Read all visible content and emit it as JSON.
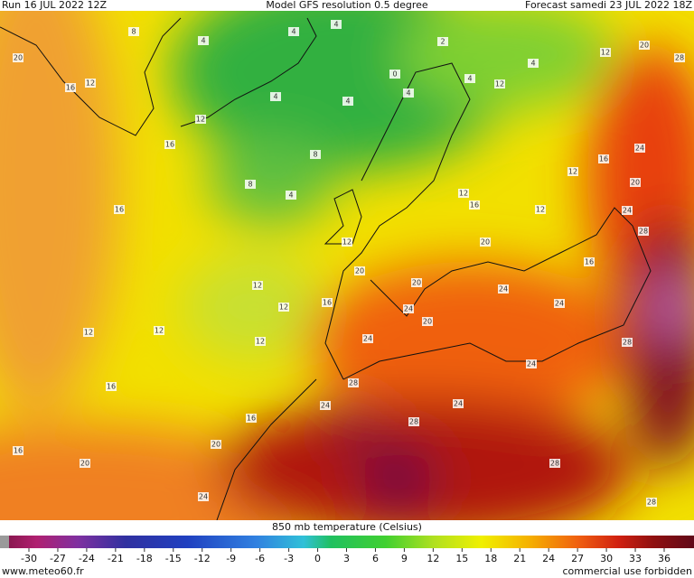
{
  "header": {
    "run": "Run 16 JUL 2022 12Z",
    "model": "Model GFS resolution 0.5 degree",
    "forecast": "Forecast samedi 23 JUL 2022 18Z"
  },
  "contour_labels": [
    20,
    16,
    12,
    8,
    4,
    4,
    4,
    2,
    12,
    16,
    4,
    4,
    0,
    4,
    4,
    4,
    12,
    12,
    20,
    28,
    8,
    8,
    4,
    16,
    12,
    12,
    16,
    24,
    20,
    24,
    28,
    16,
    12,
    12,
    20,
    20,
    20,
    16,
    12,
    16,
    12,
    24,
    24,
    24,
    20,
    12,
    12,
    12,
    24,
    28,
    16,
    28,
    24,
    24,
    24,
    16,
    28,
    20,
    16,
    20,
    28,
    24,
    28
  ],
  "colorbar": {
    "title": "850 mb temperature (Celsius)",
    "ticks": [
      -30,
      -27,
      -24,
      -21,
      -18,
      -15,
      -12,
      -9,
      -6,
      -3,
      0,
      3,
      6,
      9,
      12,
      15,
      18,
      21,
      24,
      27,
      30,
      33,
      36
    ]
  },
  "footer": {
    "site": "www.meteo60.fr",
    "notice": "commercial use forbidden"
  }
}
